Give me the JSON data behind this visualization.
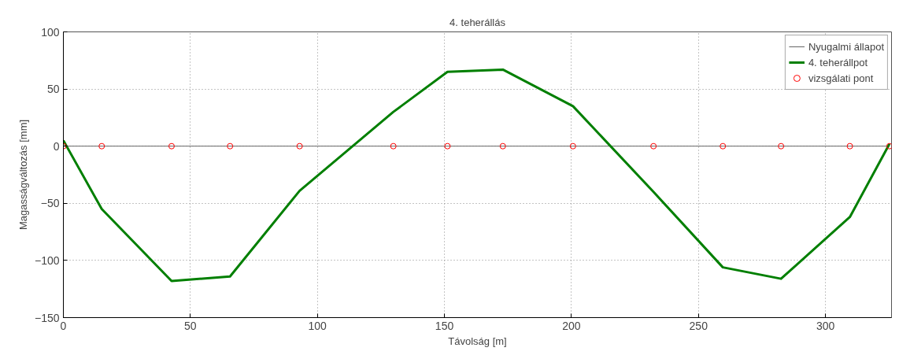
{
  "chart_data": {
    "type": "line",
    "title": "4. teherállás",
    "xlabel": "Távolság [m]",
    "ylabel": "Magasságváltozás [mm]",
    "x": [
      0,
      15.1,
      42.6,
      65.6,
      93,
      129.9,
      151.2,
      173,
      200.6,
      232.3,
      259.6,
      282.5,
      309.6,
      325.2
    ],
    "series": [
      {
        "name": "Nyugalmi állapot",
        "color": "#666666",
        "values": [
          0,
          0,
          0,
          0,
          0,
          0,
          0,
          0,
          0,
          0,
          0,
          0,
          0,
          0
        ],
        "marker": "none",
        "line_style": "solid"
      },
      {
        "name": "4. teherállpot",
        "color": "#007f00",
        "values": [
          5,
          -55,
          -118,
          -114,
          -39,
          30,
          65,
          67,
          35,
          -40,
          -106,
          -116,
          -62,
          2
        ],
        "marker": "none",
        "line_style": "solid"
      },
      {
        "name": "vizsgálati pont",
        "type": "scatter",
        "color": "#ff0000",
        "values": [
          0,
          0,
          0,
          0,
          0,
          0,
          0,
          0,
          0,
          0,
          0,
          0,
          0,
          0
        ],
        "marker": "circle"
      }
    ],
    "xlim": [
      0,
      326
    ],
    "ylim": [
      -150,
      100
    ],
    "xticks": [
      0,
      50,
      100,
      150,
      200,
      250,
      300
    ],
    "yticks": [
      -150,
      -100,
      -50,
      0,
      50,
      100
    ],
    "grid": true,
    "legend": "top right"
  }
}
